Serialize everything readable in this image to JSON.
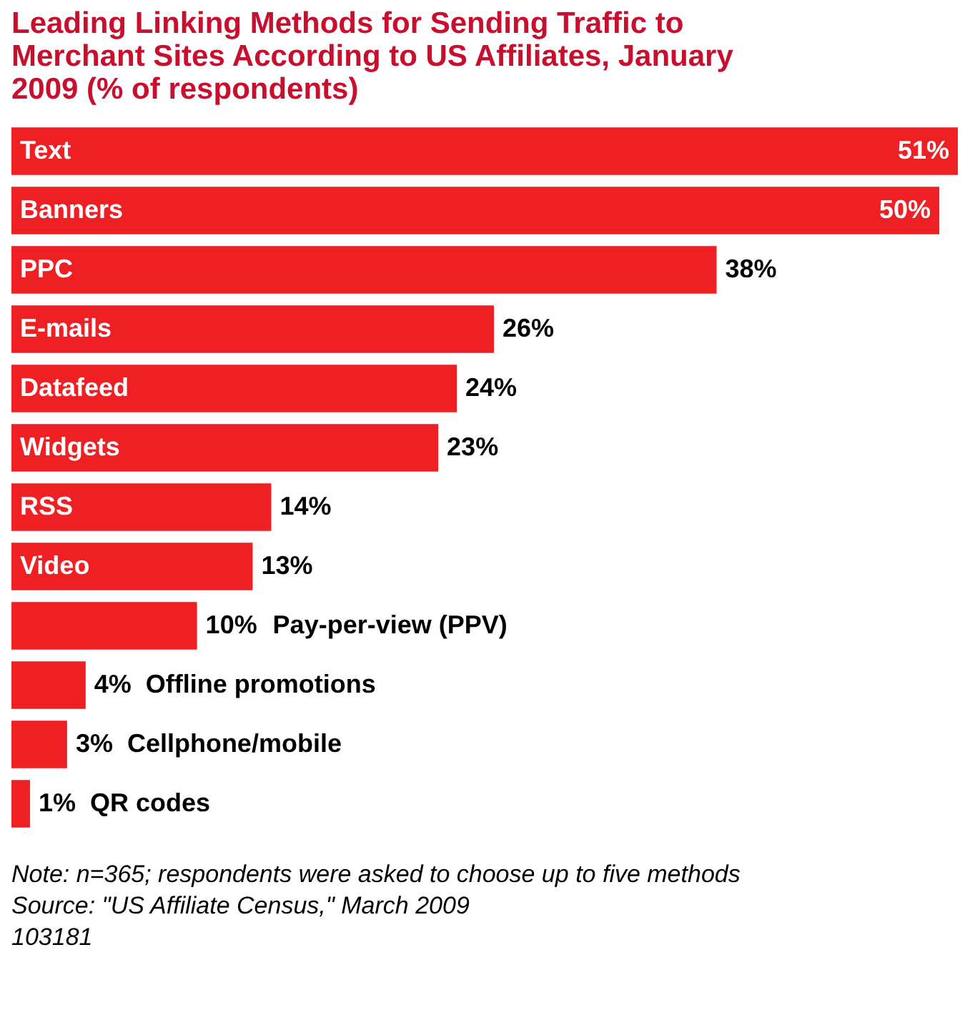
{
  "chart_data": {
    "type": "bar",
    "orientation": "horizontal",
    "title": "Leading Linking Methods for Sending Traffic to Merchant Sites According to US Affiliates, January 2009 (% of respondents)",
    "categories": [
      "Text",
      "Banners",
      "PPC",
      "E-mails",
      "Datafeed",
      "Widgets",
      "RSS",
      "Video",
      "Pay-per-view (PPV)",
      "Offline promotions",
      "Cellphone/mobile",
      "QR codes"
    ],
    "values": [
      51,
      50,
      38,
      26,
      24,
      23,
      14,
      13,
      10,
      4,
      3,
      1
    ],
    "value_labels": [
      "51%",
      "50%",
      "38%",
      "26%",
      "24%",
      "23%",
      "14%",
      "13%",
      "10%",
      "4%",
      "3%",
      "1%"
    ],
    "color": "#ee2024",
    "annotations": [
      "Note: n=365; respondents were asked to choose up to five methods",
      "Source: \"US Affiliate Census,\" March 2009",
      "103181"
    ]
  }
}
